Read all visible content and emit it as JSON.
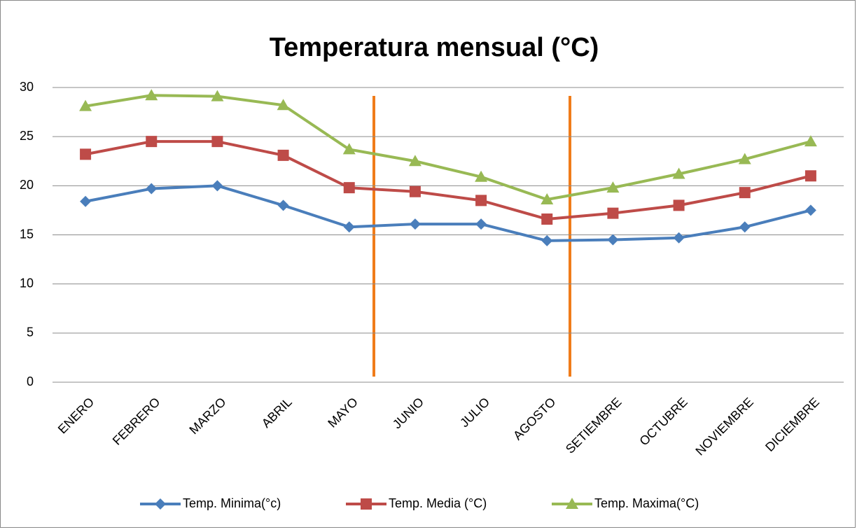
{
  "chart_data": {
    "type": "line",
    "title": "Temperatura mensual (°C)",
    "categories": [
      "ENERO",
      "FEBRERO",
      "MARZO",
      "ABRIL",
      "MAYO",
      "JUNIO",
      "JULIO",
      "AGOSTO",
      "SETIEMBRE",
      "OCTUBRE",
      "NOVIEMBRE",
      "DICIEMBRE"
    ],
    "series": [
      {
        "name": "Temp. Minima(°c)",
        "color": "#4a7ebb",
        "marker": "diamond",
        "values": [
          18.4,
          19.7,
          20.0,
          18.0,
          15.8,
          16.1,
          16.1,
          14.4,
          14.5,
          14.7,
          15.8,
          17.5
        ]
      },
      {
        "name": "Temp. Media (°C)",
        "color": "#be4b48",
        "marker": "square",
        "values": [
          23.2,
          24.5,
          24.5,
          23.1,
          19.8,
          19.4,
          18.5,
          16.6,
          17.2,
          18.0,
          19.3,
          21.0
        ]
      },
      {
        "name": "Temp. Maxima(°C)",
        "color": "#98b954",
        "marker": "triangle",
        "values": [
          28.1,
          29.2,
          29.1,
          28.2,
          23.7,
          22.5,
          20.9,
          18.6,
          19.8,
          21.2,
          22.7,
          24.5
        ]
      }
    ],
    "ylim": [
      0,
      30
    ],
    "yticks": [
      0,
      5,
      10,
      15,
      20,
      25,
      30
    ],
    "grid": true,
    "legend": "bottom"
  }
}
